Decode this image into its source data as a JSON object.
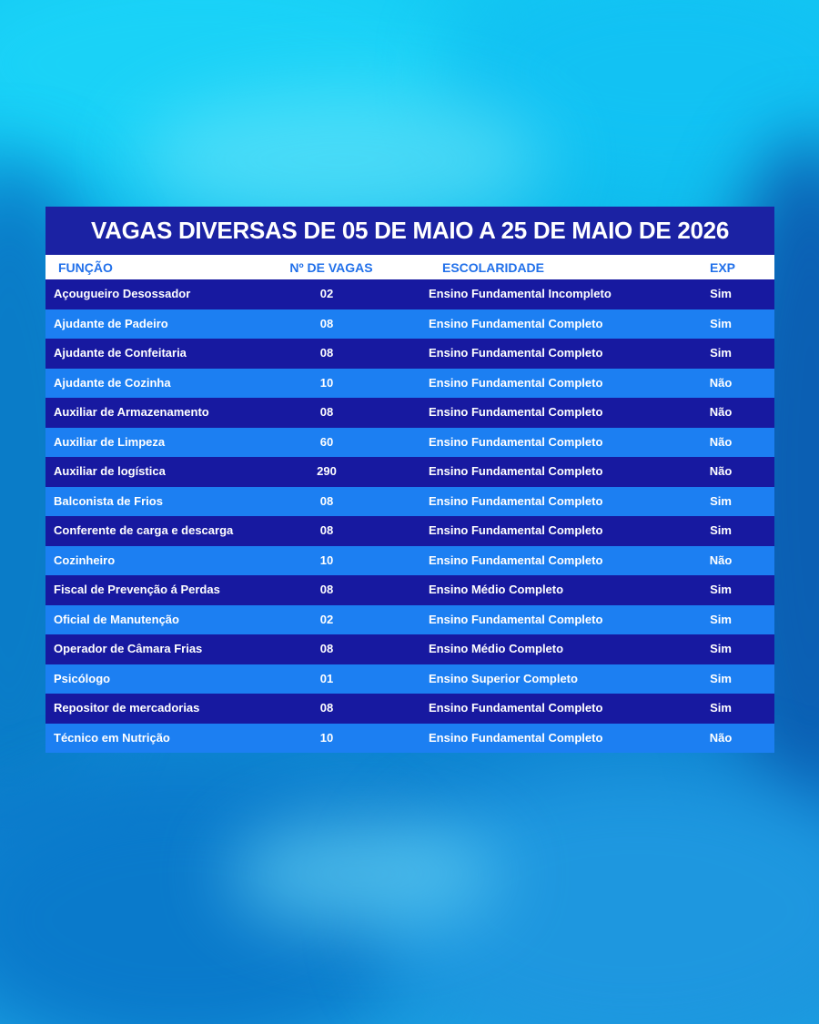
{
  "title": "VAGAS DIVERSAS DE 05 DE MAIO A 25 DE MAIO DE 2026",
  "columns": {
    "funcao": "FUNÇÃO",
    "vagas": "Nº DE VAGAS",
    "escolaridade": "ESCOLARIDADE",
    "exp": "EXP"
  },
  "rows": [
    {
      "funcao": "Açougueiro Desossador",
      "vagas": "02",
      "escolaridade": "Ensino Fundamental Incompleto",
      "exp": "Sim"
    },
    {
      "funcao": "Ajudante de Padeiro",
      "vagas": "08",
      "escolaridade": "Ensino Fundamental Completo",
      "exp": "Sim"
    },
    {
      "funcao": "Ajudante de Confeitaria",
      "vagas": "08",
      "escolaridade": "Ensino Fundamental Completo",
      "exp": "Sim"
    },
    {
      "funcao": "Ajudante de Cozinha",
      "vagas": "10",
      "escolaridade": "Ensino Fundamental Completo",
      "exp": "Não"
    },
    {
      "funcao": "Auxiliar de Armazenamento",
      "vagas": "08",
      "escolaridade": "Ensino Fundamental Completo",
      "exp": "Não"
    },
    {
      "funcao": "Auxiliar de Limpeza",
      "vagas": "60",
      "escolaridade": "Ensino Fundamental Completo",
      "exp": "Não"
    },
    {
      "funcao": "Auxiliar de logística",
      "vagas": "290",
      "escolaridade": "Ensino Fundamental Completo",
      "exp": "Não"
    },
    {
      "funcao": "Balconista de Frios",
      "vagas": "08",
      "escolaridade": "Ensino Fundamental Completo",
      "exp": "Sim"
    },
    {
      "funcao": "Conferente de carga e descarga",
      "vagas": "08",
      "escolaridade": "Ensino Fundamental Completo",
      "exp": "Sim"
    },
    {
      "funcao": "Cozinheiro",
      "vagas": "10",
      "escolaridade": "Ensino Fundamental Completo",
      "exp": "Não"
    },
    {
      "funcao": "Fiscal de Prevenção á Perdas",
      "vagas": "08",
      "escolaridade": "Ensino Médio Completo",
      "exp": "Sim"
    },
    {
      "funcao": "Oficial de Manutenção",
      "vagas": "02",
      "escolaridade": "Ensino Fundamental Completo",
      "exp": "Sim"
    },
    {
      "funcao": "Operador de Câmara Frias",
      "vagas": "08",
      "escolaridade": "Ensino Médio Completo",
      "exp": "Sim"
    },
    {
      "funcao": "Psicólogo",
      "vagas": "01",
      "escolaridade": "Ensino Superior Completo",
      "exp": "Sim"
    },
    {
      "funcao": "Repositor de mercadorias",
      "vagas": "08",
      "escolaridade": "Ensino Fundamental Completo",
      "exp": "Sim"
    },
    {
      "funcao": "Técnico em Nutrição",
      "vagas": "10",
      "escolaridade": "Ensino Fundamental Completo",
      "exp": "Não"
    }
  ],
  "colors": {
    "title_bg": "#1b22a3",
    "row_dark": "#1719a0",
    "row_light": "#1c7ff2",
    "header_text": "#2170ea"
  }
}
